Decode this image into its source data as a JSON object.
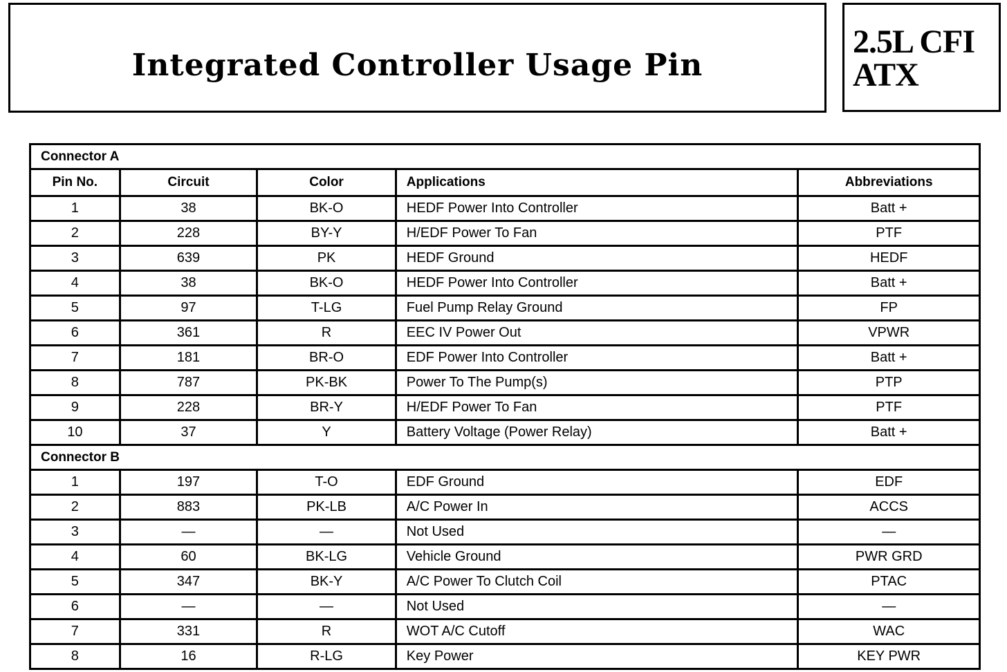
{
  "title": "Integrated Controller Usage Pin",
  "engine": {
    "line1": "2.5L CFI",
    "line2": "ATX"
  },
  "columns": [
    "Pin No.",
    "Circuit",
    "Color",
    "Applications",
    "Abbreviations"
  ],
  "connectors": [
    {
      "name": "Connector A",
      "rows": [
        {
          "pin": "1",
          "circuit": "38",
          "color": "BK-O",
          "application": "HEDF Power Into Controller",
          "abbr": "Batt +"
        },
        {
          "pin": "2",
          "circuit": "228",
          "color": "BY-Y",
          "application": "H/EDF Power To Fan",
          "abbr": "PTF"
        },
        {
          "pin": "3",
          "circuit": "639",
          "color": "PK",
          "application": "HEDF Ground",
          "abbr": "HEDF"
        },
        {
          "pin": "4",
          "circuit": "38",
          "color": "BK-O",
          "application": "HEDF Power Into Controller",
          "abbr": "Batt +"
        },
        {
          "pin": "5",
          "circuit": "97",
          "color": "T-LG",
          "application": "Fuel Pump Relay Ground",
          "abbr": "FP"
        },
        {
          "pin": "6",
          "circuit": "361",
          "color": "R",
          "application": "EEC IV Power Out",
          "abbr": "VPWR"
        },
        {
          "pin": "7",
          "circuit": "181",
          "color": "BR-O",
          "application": "EDF Power Into Controller",
          "abbr": "Batt +"
        },
        {
          "pin": "8",
          "circuit": "787",
          "color": "PK-BK",
          "application": "Power To The Pump(s)",
          "abbr": "PTP"
        },
        {
          "pin": "9",
          "circuit": "228",
          "color": "BR-Y",
          "application": "H/EDF Power To Fan",
          "abbr": "PTF"
        },
        {
          "pin": "10",
          "circuit": "37",
          "color": "Y",
          "application": "Battery Voltage (Power Relay)",
          "abbr": "Batt +"
        }
      ]
    },
    {
      "name": "Connector B",
      "rows": [
        {
          "pin": "1",
          "circuit": "197",
          "color": "T-O",
          "application": "EDF Ground",
          "abbr": "EDF"
        },
        {
          "pin": "2",
          "circuit": "883",
          "color": "PK-LB",
          "application": "A/C Power In",
          "abbr": "ACCS"
        },
        {
          "pin": "3",
          "circuit": "—",
          "color": "—",
          "application": "Not Used",
          "abbr": "—"
        },
        {
          "pin": "4",
          "circuit": "60",
          "color": "BK-LG",
          "application": "Vehicle Ground",
          "abbr": "PWR GRD"
        },
        {
          "pin": "5",
          "circuit": "347",
          "color": "BK-Y",
          "application": "A/C Power To Clutch Coil",
          "abbr": "PTAC"
        },
        {
          "pin": "6",
          "circuit": "—",
          "color": "—",
          "application": "Not Used",
          "abbr": "—"
        },
        {
          "pin": "7",
          "circuit": "331",
          "color": "R",
          "application": "WOT A/C Cutoff",
          "abbr": "WAC"
        },
        {
          "pin": "8",
          "circuit": "16",
          "color": "R-LG",
          "application": "Key Power",
          "abbr": "KEY PWR"
        }
      ]
    }
  ]
}
